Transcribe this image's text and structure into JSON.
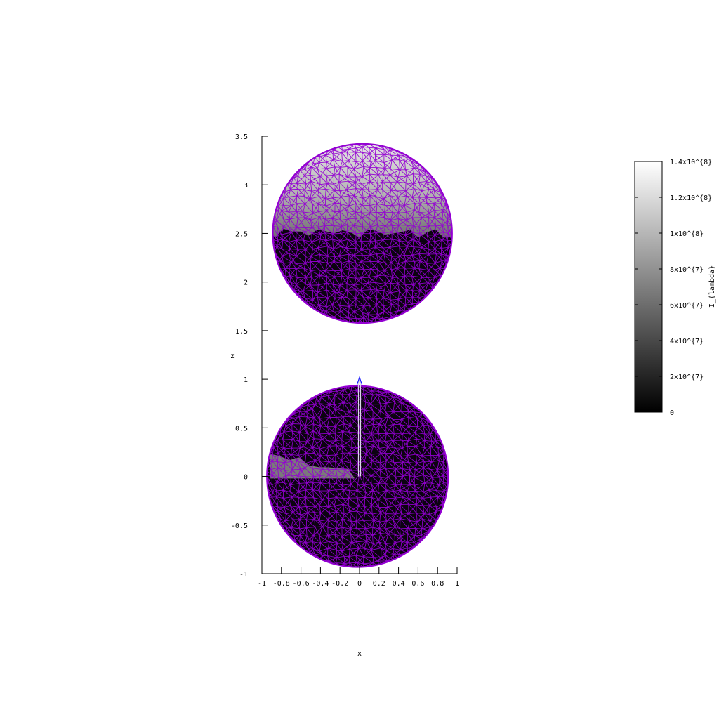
{
  "chart_data": {
    "type": "surface",
    "view": "projection onto x-z plane (wireframe spheres with pm3d shading)",
    "title": "",
    "xlabel": "x",
    "ylabel": "z",
    "xlim": [
      -1,
      1
    ],
    "ylim": [
      -1,
      3.5
    ],
    "xticks": [
      -1,
      -0.8,
      -0.6,
      -0.4,
      -0.2,
      0,
      0.2,
      0.4,
      0.6,
      0.8,
      1
    ],
    "xtick_labels": [
      "-1",
      "-0.8",
      "-0.6",
      "-0.4",
      "-0.2",
      "0",
      "0.2",
      "0.4",
      "0.6",
      "0.8",
      "1"
    ],
    "yticks": [
      -1,
      -0.5,
      0,
      0.5,
      1,
      1.5,
      2,
      2.5,
      3,
      3.5
    ],
    "ytick_labels": [
      "-1",
      "-0.5",
      "0",
      "0.5",
      "1",
      "1.5",
      "2",
      "2.5",
      "3",
      "3.5"
    ],
    "mesh_color": "#9400d3",
    "objects": [
      {
        "center_x": 0.03,
        "center_z": 2.5,
        "radius": 0.92,
        "lit_from_z": 2.5,
        "lit_value_top": 125000000.0,
        "lit_value_edge": 70000000.0
      },
      {
        "center_x": -0.02,
        "center_z": 0.0,
        "radius": 0.93,
        "lit_patch": {
          "x_range": [
            -0.92,
            -0.05
          ],
          "z_range": [
            -0.02,
            0.28
          ],
          "value": 50000000.0
        }
      }
    ],
    "spike": {
      "x": 0.0,
      "z_from": 0.0,
      "z_to": 1.02,
      "color": "#1010ff"
    },
    "colorbar": {
      "label": "I_{lambda}",
      "range": [
        0,
        140000000.0
      ],
      "ticks": [
        0,
        20000000.0,
        40000000.0,
        60000000.0,
        80000000.0,
        100000000.0,
        120000000.0,
        140000000.0
      ],
      "tick_labels": [
        "0",
        "2x10^{7}",
        "4x10^{7}",
        "6x10^{7}",
        "8x10^{7}",
        "1x10^{8}",
        "1.2x10^{8}",
        "1.4x10^{8}"
      ],
      "palette": [
        "#000000",
        "#ffffff"
      ]
    }
  }
}
